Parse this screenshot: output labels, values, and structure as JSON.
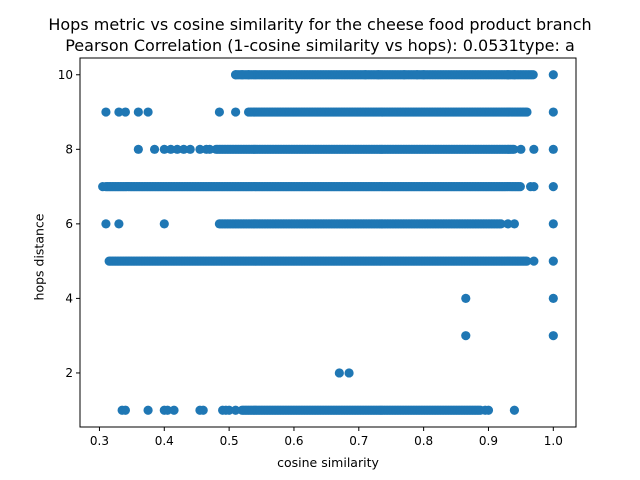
{
  "chart_data": {
    "type": "scatter",
    "title": "Hops metric vs cosine similarity for the cheese food product branch",
    "subtitle": "Pearson Correlation (1-cosine similarity vs hops): 0.0531type: a",
    "xlabel": "cosine similarity",
    "ylabel": "hops distance",
    "xlim": [
      0.27,
      1.035
    ],
    "ylim": [
      0.55,
      10.45
    ],
    "xticks": [
      "0.3",
      "0.4",
      "0.5",
      "0.6",
      "0.7",
      "0.8",
      "0.9",
      "1.0"
    ],
    "yticks": [
      "2",
      "4",
      "6",
      "8",
      "10"
    ],
    "grid": false,
    "marker_color": "#1f77b4",
    "series": [
      {
        "bands": [
          {
            "y": 10,
            "x_start": 0.51,
            "x_end": 0.97,
            "sparse": [
              0.51,
              0.52,
              0.53,
              0.71,
              0.73,
              0.77,
              0.79,
              0.8,
              0.93,
              0.94,
              1.0
            ]
          },
          {
            "y": 9,
            "x_start": 0.53,
            "x_end": 0.96,
            "sparse": [
              0.31,
              0.33,
              0.34,
              0.36,
              0.375,
              0.485,
              0.51,
              1.0
            ]
          },
          {
            "y": 8,
            "x_start": 0.48,
            "x_end": 0.94,
            "sparse": [
              0.36,
              0.385,
              0.4,
              0.41,
              0.42,
              0.43,
              0.44,
              0.455,
              0.465,
              0.47,
              0.95,
              0.97,
              1.0
            ]
          },
          {
            "y": 7,
            "x_start": 0.31,
            "x_end": 0.95,
            "sparse": [
              0.305,
              0.965,
              0.97,
              1.0
            ]
          },
          {
            "y": 6,
            "x_start": 0.485,
            "x_end": 0.92,
            "sparse": [
              0.31,
              0.33,
              0.4,
              0.93,
              0.94,
              1.0
            ]
          },
          {
            "y": 5,
            "x_start": 0.315,
            "x_end": 0.96,
            "sparse": [
              0.97,
              1.0
            ]
          },
          {
            "y": 1,
            "x_start": 0.52,
            "x_end": 0.89,
            "sparse": [
              0.335,
              0.34,
              0.375,
              0.4,
              0.405,
              0.415,
              0.455,
              0.46,
              0.49,
              0.495,
              0.5,
              0.51,
              0.895,
              0.9,
              0.94
            ]
          }
        ],
        "points": [
          {
            "x": 0.865,
            "y": 4
          },
          {
            "x": 1.0,
            "y": 4
          },
          {
            "x": 0.865,
            "y": 3
          },
          {
            "x": 1.0,
            "y": 3
          },
          {
            "x": 0.67,
            "y": 2
          },
          {
            "x": 0.685,
            "y": 2
          }
        ]
      }
    ]
  }
}
